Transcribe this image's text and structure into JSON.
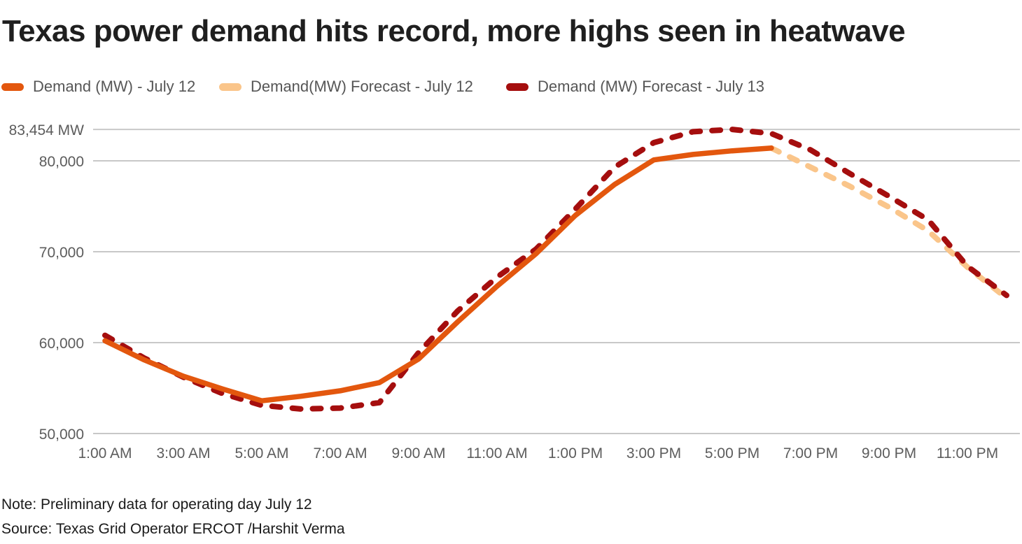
{
  "title": "Texas power demand hits record, more highs seen in  heatwave",
  "note": "Note: Preliminary data for operating day July 12",
  "source": "Source: Texas Grid Operator ERCOT /Harshit Verma",
  "colors": {
    "title_text": "#1f1f1f",
    "axis_text": "#5c5c5c",
    "gridline": "#c8c8c8",
    "demand_actual": "#E3570E",
    "demand_forecast_jul12": "#FAC58A",
    "demand_forecast_jul13": "#A50E0E",
    "background": "#ffffff"
  },
  "legend": [
    {
      "label": "Demand (MW) - July 12",
      "color": "#E3570E",
      "style": "solid"
    },
    {
      "label": "Demand(MW) Forecast - July 12",
      "color": "#FAC58A",
      "style": "dashed"
    },
    {
      "label": "Demand (MW) Forecast - July 13",
      "color": "#A50E0E",
      "style": "dashed"
    }
  ],
  "chart_data": {
    "type": "line",
    "title": "Texas power demand hits record, more highs seen in  heatwave",
    "xlabel": "",
    "ylabel": "MW",
    "x_unit": "hour_of_day",
    "xlim_hours": [
      1,
      24
    ],
    "ylim": [
      50000,
      83454
    ],
    "grid": true,
    "legend_position": "top",
    "x_ticks": [
      {
        "hour": 1,
        "label": "1:00 AM"
      },
      {
        "hour": 3,
        "label": "3:00 AM"
      },
      {
        "hour": 5,
        "label": "5:00 AM"
      },
      {
        "hour": 7,
        "label": "7:00 AM"
      },
      {
        "hour": 9,
        "label": "9:00 AM"
      },
      {
        "hour": 11,
        "label": "11:00 AM"
      },
      {
        "hour": 13,
        "label": "1:00 PM"
      },
      {
        "hour": 15,
        "label": "3:00 PM"
      },
      {
        "hour": 17,
        "label": "5:00 PM"
      },
      {
        "hour": 19,
        "label": "7:00 PM"
      },
      {
        "hour": 21,
        "label": "9:00 PM"
      },
      {
        "hour": 23,
        "label": "11:00 PM"
      }
    ],
    "y_ticks": [
      {
        "value": 83454,
        "label": "83,454 MW"
      },
      {
        "value": 80000,
        "label": "80,000"
      },
      {
        "value": 70000,
        "label": "70,000"
      },
      {
        "value": 60000,
        "label": "60,000"
      },
      {
        "value": 50000,
        "label": "50,000"
      }
    ],
    "series": [
      {
        "name": "Demand(MW) Forecast - July 12",
        "color": "#FAC58A",
        "dash": true,
        "start_hour": 18,
        "values": [
          81400,
          79300,
          77200,
          74900,
          72300,
          68300,
          64900
        ]
      },
      {
        "name": "Demand (MW) Forecast - July 13",
        "color": "#A50E0E",
        "dash": true,
        "start_hour": 1,
        "values": [
          60800,
          58300,
          56200,
          54400,
          53100,
          52700,
          52800,
          53400,
          58900,
          63500,
          67200,
          70300,
          74700,
          79300,
          82000,
          83200,
          83454,
          83000,
          81200,
          78600,
          76100,
          73500,
          68400,
          65200
        ]
      },
      {
        "name": "Demand (MW) - July 12",
        "color": "#E3570E",
        "dash": false,
        "start_hour": 1,
        "values": [
          60200,
          58100,
          56300,
          54900,
          53600,
          54100,
          54700,
          55600,
          58200,
          62300,
          66200,
          69800,
          74000,
          77400,
          80100,
          80700,
          81100,
          81400
        ]
      }
    ]
  }
}
